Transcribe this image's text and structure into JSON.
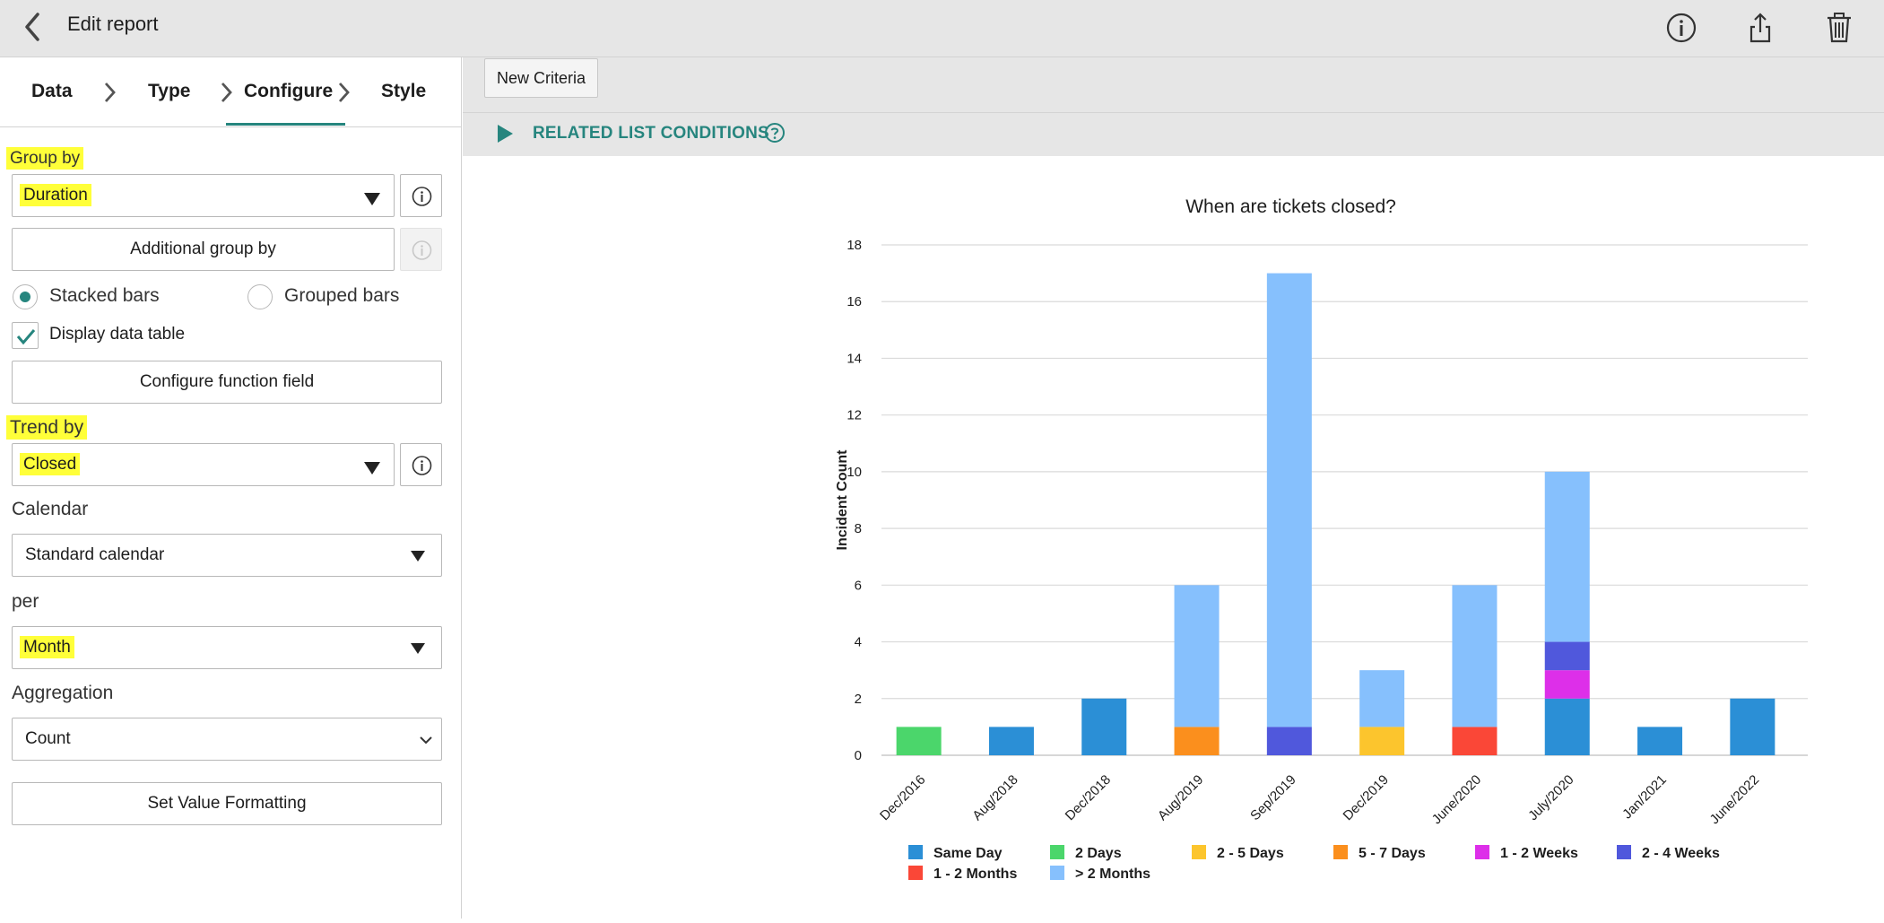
{
  "header": {
    "title": "Edit report"
  },
  "steps": [
    "Data",
    "Type",
    "Configure",
    "Style"
  ],
  "config": {
    "group_by_label": "Group by",
    "group_by_value": "Duration",
    "additional_group_by": "Additional group by",
    "stacked_bars": "Stacked bars",
    "grouped_bars": "Grouped bars",
    "display_data_table": "Display data table",
    "configure_function_field": "Configure function field",
    "trend_by_label": "Trend by",
    "trend_by_value": "Closed",
    "calendar_label": "Calendar",
    "calendar_value": "Standard calendar",
    "per_label": "per",
    "per_value": "Month",
    "aggregation_label": "Aggregation",
    "aggregation_value": "Count",
    "set_value_formatting": "Set Value Formatting"
  },
  "conditions": {
    "new_criteria": "New Criteria",
    "related_list_conditions": "RELATED LIST CONDITIONS"
  },
  "icons": {
    "back": "chevron-left-icon",
    "info": "info-icon",
    "share": "share-icon",
    "delete": "trash-icon",
    "help": "question-circle-icon"
  },
  "colors": {
    "accent": "#26857e",
    "highlight": "#ffff39"
  },
  "chart_data": {
    "type": "bar",
    "stacked": true,
    "title": "When are tickets closed?",
    "ylabel": "Incident Count",
    "xlabel": "",
    "ylim": [
      0,
      18
    ],
    "yticks": [
      0,
      2,
      4,
      6,
      8,
      10,
      12,
      14,
      16,
      18
    ],
    "grid": true,
    "legend_position": "bottom",
    "categories": [
      "Dec/2016",
      "Aug/2018",
      "Dec/2018",
      "Aug/2019",
      "Sep/2019",
      "Dec/2019",
      "June/2020",
      "July/2020",
      "Jan/2021",
      "June/2022"
    ],
    "series": [
      {
        "name": "Same Day",
        "color": "#2b8fd6",
        "values": [
          0,
          1,
          2,
          0,
          0,
          0,
          0,
          2,
          1,
          2
        ]
      },
      {
        "name": "2 Days",
        "color": "#4bd66b",
        "values": [
          1,
          0,
          0,
          0,
          0,
          0,
          0,
          0,
          0,
          0
        ]
      },
      {
        "name": "2 - 5 Days",
        "color": "#fcc52d",
        "values": [
          0,
          0,
          0,
          0,
          0,
          1,
          0,
          0,
          0,
          0
        ]
      },
      {
        "name": "5 - 7 Days",
        "color": "#fb8f1d",
        "values": [
          0,
          0,
          0,
          1,
          0,
          0,
          0,
          0,
          0,
          0
        ]
      },
      {
        "name": "1 - 2 Weeks",
        "color": "#dd2fe9",
        "values": [
          0,
          0,
          0,
          0,
          0,
          0,
          0,
          1,
          0,
          0
        ]
      },
      {
        "name": "2 - 4 Weeks",
        "color": "#5058dc",
        "values": [
          0,
          0,
          0,
          0,
          1,
          0,
          0,
          1,
          0,
          0
        ]
      },
      {
        "name": "1 - 2 Months",
        "color": "#fa4737",
        "values": [
          0,
          0,
          0,
          0,
          0,
          0,
          1,
          0,
          0,
          0
        ]
      },
      {
        "name": "> 2 Months",
        "color": "#86c0fd",
        "values": [
          0,
          0,
          0,
          5,
          16,
          2,
          5,
          6,
          0,
          0
        ]
      }
    ]
  }
}
